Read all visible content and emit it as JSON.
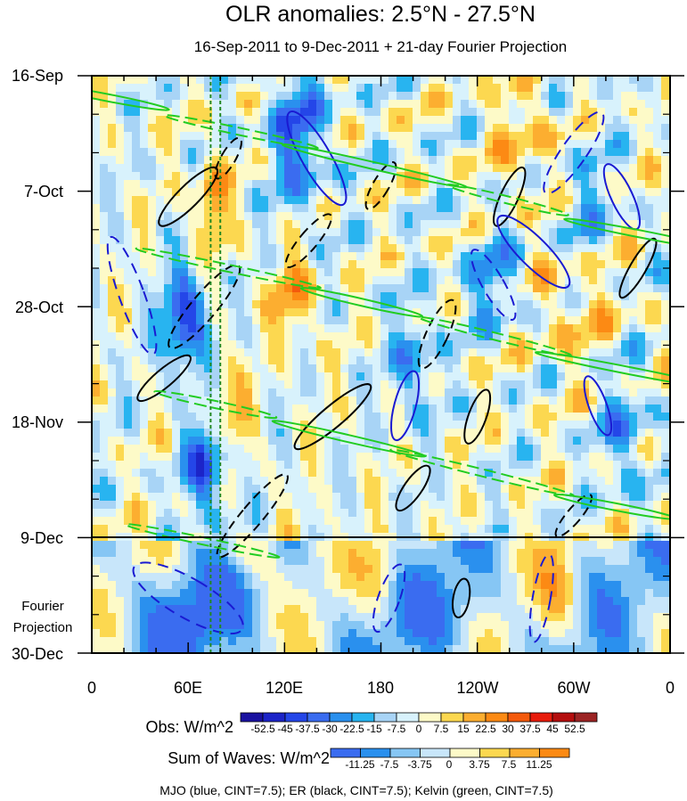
{
  "chart_data": {
    "type": "heatmap",
    "title": "OLR anomalies: 2.5°N - 27.5°N",
    "subtitle": "16-Sep-2011 to 9-Dec-2011 + 21-day Fourier Projection",
    "x_tick_labels": [
      "0",
      "60E",
      "120E",
      "180",
      "120W",
      "60W",
      "0"
    ],
    "x_range": [
      0,
      360
    ],
    "y_tick_labels": [
      "16-Sep",
      "7-Oct",
      "28-Oct",
      "18-Nov",
      "9-Dec",
      "30-Dec"
    ],
    "y_range_days": [
      0,
      105
    ],
    "observation_end": "9-Dec",
    "projection_label_1": "Fourier",
    "projection_label_2": "Projection",
    "obs_colorbar": {
      "label": "Obs: W/m^2",
      "levels": [
        -52.5,
        -45,
        -37.5,
        -30,
        -22.5,
        -15,
        -7.5,
        0,
        7.5,
        15,
        22.5,
        30,
        37.5,
        45,
        52.5
      ],
      "level_labels": [
        "-52.5",
        "-45",
        "-37.5",
        "-30",
        "-22.5",
        "-15",
        "-7.5",
        "0",
        "7.5",
        "15",
        "22.5",
        "30",
        "37.5",
        "45",
        "52.5"
      ],
      "colors": [
        "#7a1fe0",
        "#1a12a0",
        "#1c24c8",
        "#2446e8",
        "#3a6cf0",
        "#2a90ee",
        "#28b4f0",
        "#a8d4f6",
        "#d8f2fc",
        "#fdfac8",
        "#fcd850",
        "#fcae30",
        "#fc8a14",
        "#f45a0c",
        "#e81c0c",
        "#b40e0e",
        "#9c2424",
        "#fc6ed0"
      ]
    },
    "waves_colorbar": {
      "label": "Sum of Waves: W/m^2",
      "levels": [
        -11.25,
        -7.5,
        -3.75,
        0,
        3.75,
        7.5,
        11.25
      ],
      "level_labels": [
        "-11.25",
        "-7.5",
        "-3.75",
        "0",
        "3.75",
        "7.5",
        "11.25"
      ],
      "colors": [
        "#3a6cf0",
        "#2a90ee",
        "#86c6f4",
        "#c8e6fa",
        "#fdfac8",
        "#fcd850",
        "#fcae30",
        "#fc8a14"
      ]
    },
    "contour_legend": "MJO (blue, CINT=7.5); ER (black, CINT=7.5); Kelvin (green, CINT=7.5)",
    "contour_colors": {
      "mjo": "#1a1ad2",
      "er": "#000000",
      "kelvin": "#22cc22"
    },
    "reference_lines": {
      "longitudes": [
        74,
        80
      ],
      "color": "#228822"
    }
  }
}
